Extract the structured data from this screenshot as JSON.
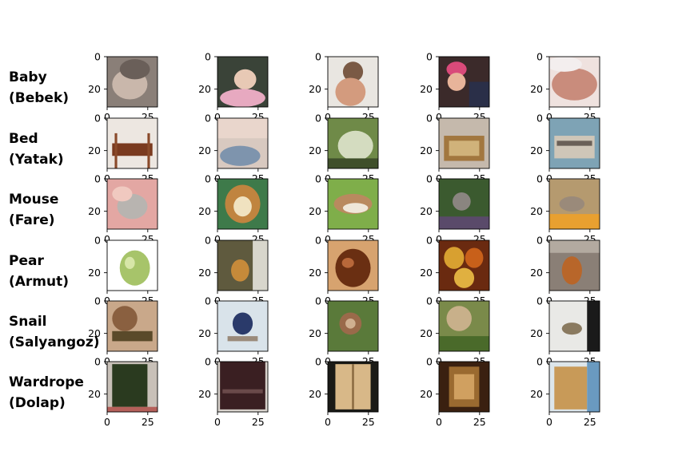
{
  "chart_data": {
    "type": "image-grid",
    "rows": [
      {
        "name": "Baby",
        "translation": "(Bebek)",
        "thumbs": [
          {
            "bg": "#8a7f78",
            "shapes": [
              {
                "kind": "ellipse",
                "cx": 0.45,
                "cy": 0.55,
                "rx": 0.35,
                "ry": 0.3,
                "fill": "#c9b7ab"
              },
              {
                "kind": "ellipse",
                "cx": 0.55,
                "cy": 0.25,
                "rx": 0.3,
                "ry": 0.2,
                "fill": "#6a5f59"
              }
            ]
          },
          {
            "bg": "#3a4338",
            "shapes": [
              {
                "kind": "ellipse",
                "cx": 0.55,
                "cy": 0.45,
                "rx": 0.22,
                "ry": 0.2,
                "fill": "#e8c9b5"
              },
              {
                "kind": "ellipse",
                "cx": 0.5,
                "cy": 0.82,
                "rx": 0.45,
                "ry": 0.18,
                "fill": "#e7a9c0"
              }
            ]
          },
          {
            "bg": "#e9e6e1",
            "shapes": [
              {
                "kind": "ellipse",
                "cx": 0.5,
                "cy": 0.3,
                "rx": 0.2,
                "ry": 0.2,
                "fill": "#7a5a45"
              },
              {
                "kind": "ellipse",
                "cx": 0.45,
                "cy": 0.7,
                "rx": 0.3,
                "ry": 0.28,
                "fill": "#d39b7e"
              }
            ]
          },
          {
            "bg": "#3b2a2a",
            "shapes": [
              {
                "kind": "ellipse",
                "cx": 0.35,
                "cy": 0.25,
                "rx": 0.2,
                "ry": 0.15,
                "fill": "#d94a7a"
              },
              {
                "kind": "ellipse",
                "cx": 0.35,
                "cy": 0.5,
                "rx": 0.18,
                "ry": 0.18,
                "fill": "#e8b49a"
              },
              {
                "kind": "rect",
                "x": 0.6,
                "y": 0.5,
                "w": 0.4,
                "h": 0.5,
                "fill": "#2a2f48"
              }
            ]
          },
          {
            "bg": "#efe2df",
            "shapes": [
              {
                "kind": "ellipse",
                "cx": 0.5,
                "cy": 0.55,
                "rx": 0.45,
                "ry": 0.32,
                "fill": "#c98c7c"
              },
              {
                "kind": "ellipse",
                "cx": 0.3,
                "cy": 0.15,
                "rx": 0.35,
                "ry": 0.15,
                "fill": "#f3eeee"
              }
            ]
          }
        ]
      },
      {
        "name": "Bed",
        "translation": "(Yatak)",
        "thumbs": [
          {
            "bg": "#ede7e1",
            "shapes": [
              {
                "kind": "rect",
                "x": 0.1,
                "y": 0.5,
                "w": 0.8,
                "h": 0.25,
                "fill": "#7a3a1f"
              },
              {
                "kind": "rect",
                "x": 0.15,
                "y": 0.3,
                "w": 0.05,
                "h": 0.7,
                "fill": "#8a4a2a"
              },
              {
                "kind": "rect",
                "x": 0.8,
                "y": 0.3,
                "w": 0.05,
                "h": 0.7,
                "fill": "#8a4a2a"
              }
            ]
          },
          {
            "bg": "#d8c9c0",
            "shapes": [
              {
                "kind": "rect",
                "x": 0,
                "y": 0,
                "w": 1,
                "h": 0.4,
                "fill": "#e9d6cc"
              },
              {
                "kind": "ellipse",
                "cx": 0.45,
                "cy": 0.75,
                "rx": 0.4,
                "ry": 0.2,
                "fill": "#7e94ad"
              }
            ]
          },
          {
            "bg": "#6f8a48",
            "shapes": [
              {
                "kind": "ellipse",
                "cx": 0.55,
                "cy": 0.55,
                "rx": 0.35,
                "ry": 0.3,
                "fill": "#d4dcc0"
              },
              {
                "kind": "rect",
                "x": 0,
                "y": 0.8,
                "w": 1,
                "h": 0.2,
                "fill": "#3f4f2a"
              }
            ]
          },
          {
            "bg": "#c5b9ac",
            "shapes": [
              {
                "kind": "rect",
                "x": 0.1,
                "y": 0.35,
                "w": 0.8,
                "h": 0.5,
                "fill": "#a2773f"
              },
              {
                "kind": "rect",
                "x": 0.2,
                "y": 0.45,
                "w": 0.6,
                "h": 0.3,
                "fill": "#d0b27a"
              }
            ]
          },
          {
            "bg": "#7ea3b5",
            "shapes": [
              {
                "kind": "rect",
                "x": 0.1,
                "y": 0.35,
                "w": 0.8,
                "h": 0.45,
                "fill": "#cfc6b8"
              },
              {
                "kind": "rect",
                "x": 0.15,
                "y": 0.45,
                "w": 0.7,
                "h": 0.1,
                "fill": "#6a6058"
              }
            ]
          }
        ]
      },
      {
        "name": "Mouse",
        "translation": "(Fare)",
        "thumbs": [
          {
            "bg": "#e3a7a3",
            "shapes": [
              {
                "kind": "ellipse",
                "cx": 0.5,
                "cy": 0.55,
                "rx": 0.3,
                "ry": 0.25,
                "fill": "#b8b4b0"
              },
              {
                "kind": "ellipse",
                "cx": 0.3,
                "cy": 0.3,
                "rx": 0.2,
                "ry": 0.15,
                "fill": "#f0c9c0"
              }
            ]
          },
          {
            "bg": "#3e7a4a",
            "shapes": [
              {
                "kind": "ellipse",
                "cx": 0.5,
                "cy": 0.5,
                "rx": 0.35,
                "ry": 0.38,
                "fill": "#c0843f"
              },
              {
                "kind": "ellipse",
                "cx": 0.5,
                "cy": 0.55,
                "rx": 0.18,
                "ry": 0.2,
                "fill": "#f0e2c0"
              }
            ]
          },
          {
            "bg": "#7fae4a",
            "shapes": [
              {
                "kind": "ellipse",
                "cx": 0.5,
                "cy": 0.5,
                "rx": 0.38,
                "ry": 0.2,
                "fill": "#b98a5f"
              },
              {
                "kind": "ellipse",
                "cx": 0.55,
                "cy": 0.58,
                "rx": 0.25,
                "ry": 0.1,
                "fill": "#efe7d9"
              }
            ]
          },
          {
            "bg": "#3b5a2f",
            "shapes": [
              {
                "kind": "ellipse",
                "cx": 0.45,
                "cy": 0.45,
                "rx": 0.18,
                "ry": 0.18,
                "fill": "#8a8580"
              },
              {
                "kind": "rect",
                "x": 0,
                "y": 0.75,
                "w": 1,
                "h": 0.25,
                "fill": "#5a4a6a"
              }
            ]
          },
          {
            "bg": "#b59a6f",
            "shapes": [
              {
                "kind": "ellipse",
                "cx": 0.45,
                "cy": 0.5,
                "rx": 0.25,
                "ry": 0.15,
                "fill": "#9a8a7a"
              },
              {
                "kind": "rect",
                "x": 0,
                "y": 0.7,
                "w": 1,
                "h": 0.3,
                "fill": "#e8a030"
              }
            ]
          }
        ]
      },
      {
        "name": "Pear",
        "translation": "(Armut)",
        "thumbs": [
          {
            "bg": "#ffffff",
            "shapes": [
              {
                "kind": "ellipse",
                "cx": 0.55,
                "cy": 0.55,
                "rx": 0.3,
                "ry": 0.35,
                "fill": "#a7c46a"
              },
              {
                "kind": "ellipse",
                "cx": 0.45,
                "cy": 0.45,
                "rx": 0.1,
                "ry": 0.12,
                "fill": "#d7e6a8"
              }
            ]
          },
          {
            "bg": "#5f5a3e",
            "shapes": [
              {
                "kind": "ellipse",
                "cx": 0.45,
                "cy": 0.6,
                "rx": 0.18,
                "ry": 0.22,
                "fill": "#c68a3a"
              },
              {
                "kind": "rect",
                "x": 0.7,
                "y": 0,
                "w": 0.3,
                "h": 1,
                "fill": "#d8d6cc"
              }
            ]
          },
          {
            "bg": "#d7a36f",
            "shapes": [
              {
                "kind": "ellipse",
                "cx": 0.5,
                "cy": 0.55,
                "rx": 0.35,
                "ry": 0.38,
                "fill": "#6a2f12"
              },
              {
                "kind": "ellipse",
                "cx": 0.4,
                "cy": 0.45,
                "rx": 0.12,
                "ry": 0.1,
                "fill": "#b8683a"
              }
            ]
          },
          {
            "bg": "#6a2a10",
            "shapes": [
              {
                "kind": "ellipse",
                "cx": 0.3,
                "cy": 0.35,
                "rx": 0.2,
                "ry": 0.22,
                "fill": "#d8a030"
              },
              {
                "kind": "ellipse",
                "cx": 0.7,
                "cy": 0.35,
                "rx": 0.18,
                "ry": 0.2,
                "fill": "#c8601a"
              },
              {
                "kind": "ellipse",
                "cx": 0.5,
                "cy": 0.75,
                "rx": 0.2,
                "ry": 0.2,
                "fill": "#e0b040"
              }
            ]
          },
          {
            "bg": "#8a7f76",
            "shapes": [
              {
                "kind": "ellipse",
                "cx": 0.45,
                "cy": 0.6,
                "rx": 0.2,
                "ry": 0.28,
                "fill": "#b8662a"
              },
              {
                "kind": "rect",
                "x": 0,
                "y": 0,
                "w": 1,
                "h": 0.25,
                "fill": "#b3aaa0"
              }
            ]
          }
        ]
      },
      {
        "name": "Snail",
        "translation": "(Salyangoz)",
        "thumbs": [
          {
            "bg": "#c9a88a",
            "shapes": [
              {
                "kind": "ellipse",
                "cx": 0.35,
                "cy": 0.35,
                "rx": 0.25,
                "ry": 0.25,
                "fill": "#8a6040"
              },
              {
                "kind": "rect",
                "x": 0.1,
                "y": 0.6,
                "w": 0.8,
                "h": 0.2,
                "fill": "#5a4a2a"
              }
            ]
          },
          {
            "bg": "#d9e3ea",
            "shapes": [
              {
                "kind": "ellipse",
                "cx": 0.5,
                "cy": 0.45,
                "rx": 0.2,
                "ry": 0.22,
                "fill": "#2a3a6a"
              },
              {
                "kind": "rect",
                "x": 0.2,
                "y": 0.7,
                "w": 0.6,
                "h": 0.1,
                "fill": "#9a8a7a"
              }
            ]
          },
          {
            "bg": "#5a7a3a",
            "shapes": [
              {
                "kind": "ellipse",
                "cx": 0.45,
                "cy": 0.45,
                "rx": 0.22,
                "ry": 0.22,
                "fill": "#9a6a4a"
              },
              {
                "kind": "ellipse",
                "cx": 0.45,
                "cy": 0.45,
                "rx": 0.1,
                "ry": 0.1,
                "fill": "#d0b090"
              }
            ]
          },
          {
            "bg": "#7a8a4a",
            "shapes": [
              {
                "kind": "ellipse",
                "cx": 0.4,
                "cy": 0.35,
                "rx": 0.25,
                "ry": 0.25,
                "fill": "#c8b08a"
              },
              {
                "kind": "rect",
                "x": 0,
                "y": 0.7,
                "w": 1,
                "h": 0.3,
                "fill": "#4a6a2a"
              }
            ]
          },
          {
            "bg": "#e9e9e6",
            "shapes": [
              {
                "kind": "ellipse",
                "cx": 0.45,
                "cy": 0.55,
                "rx": 0.2,
                "ry": 0.12,
                "fill": "#8a7a60"
              },
              {
                "kind": "rect",
                "x": 0.75,
                "y": 0,
                "w": 0.25,
                "h": 1,
                "fill": "#1a1a1a"
              }
            ]
          }
        ]
      },
      {
        "name": "Wardrope",
        "translation": "(Dolap)",
        "thumbs": [
          {
            "bg": "#c8c0b8",
            "shapes": [
              {
                "kind": "rect",
                "x": 0.1,
                "y": 0.05,
                "w": 0.7,
                "h": 0.85,
                "fill": "#2a3a1f"
              },
              {
                "kind": "rect",
                "x": 0,
                "y": 0.9,
                "w": 1,
                "h": 0.1,
                "fill": "#b5605a"
              }
            ]
          },
          {
            "bg": "#d8d2cc",
            "shapes": [
              {
                "kind": "rect",
                "x": 0.05,
                "y": 0,
                "w": 0.9,
                "h": 0.95,
                "fill": "#3a1f22"
              },
              {
                "kind": "rect",
                "x": 0.1,
                "y": 0.55,
                "w": 0.8,
                "h": 0.08,
                "fill": "#6a4a4a"
              }
            ]
          },
          {
            "bg": "#1a1a16",
            "shapes": [
              {
                "kind": "rect",
                "x": 0.15,
                "y": 0.05,
                "w": 0.7,
                "h": 0.9,
                "fill": "#d8b888"
              },
              {
                "kind": "rect",
                "x": 0.48,
                "y": 0.05,
                "w": 0.04,
                "h": 0.9,
                "fill": "#8a6a40"
              }
            ]
          },
          {
            "bg": "#3a2010",
            "shapes": [
              {
                "kind": "rect",
                "x": 0.2,
                "y": 0.1,
                "w": 0.6,
                "h": 0.8,
                "fill": "#9a6a30"
              },
              {
                "kind": "rect",
                "x": 0.3,
                "y": 0.25,
                "w": 0.4,
                "h": 0.5,
                "fill": "#d0a060"
              }
            ]
          },
          {
            "bg": "#dde6ea",
            "shapes": [
              {
                "kind": "rect",
                "x": 0.1,
                "y": 0.1,
                "w": 0.65,
                "h": 0.85,
                "fill": "#c89a58"
              },
              {
                "kind": "rect",
                "x": 0.75,
                "y": 0,
                "w": 0.25,
                "h": 1,
                "fill": "#6a9ac0"
              }
            ]
          }
        ]
      }
    ],
    "y_ticks": [
      0,
      20
    ],
    "x_ticks": [
      0,
      25
    ],
    "x_range": [
      0,
      31
    ],
    "y_range": [
      0,
      31
    ]
  }
}
